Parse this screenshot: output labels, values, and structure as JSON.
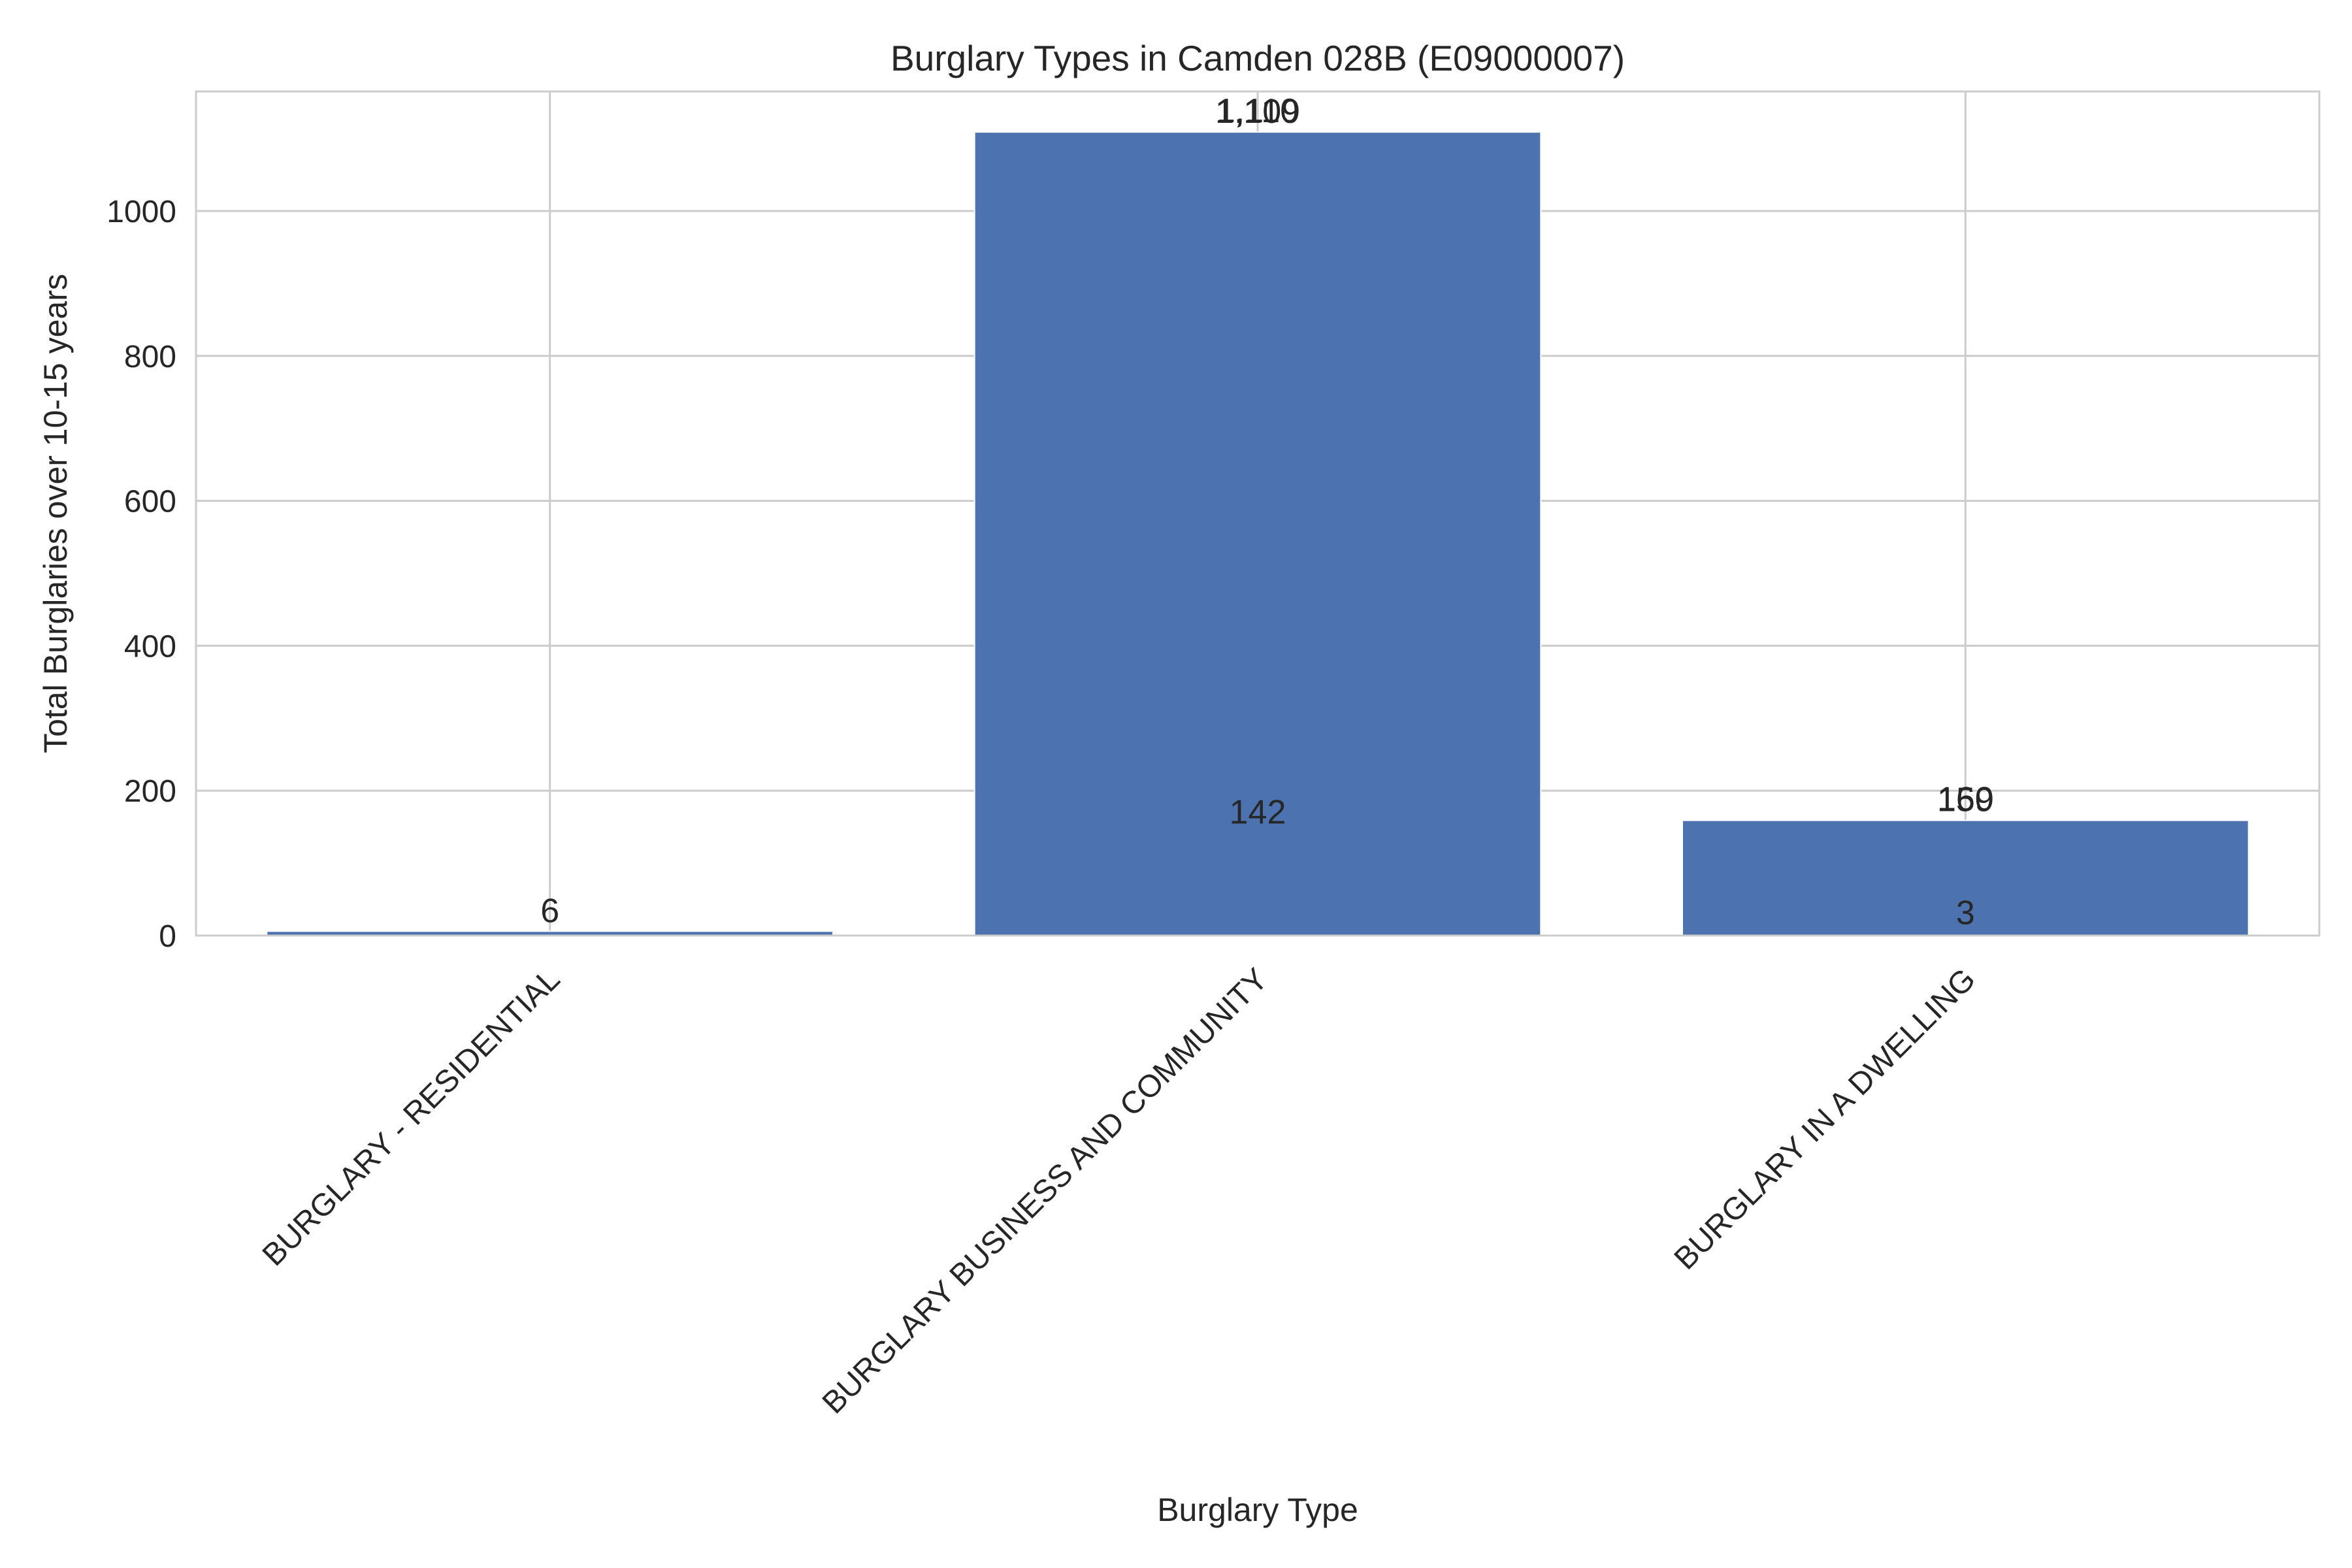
{
  "chart_data": {
    "type": "bar",
    "title": "Burglary Types in Camden 028B (E09000007)",
    "xlabel": "Burglary Type",
    "ylabel": "Total Burglaries over 10-15 years",
    "categories": [
      "BURGLARY - RESIDENTIAL",
      "BURGLARY BUSINESS AND COMMUNITY",
      "BURGLARY IN A DWELLING"
    ],
    "values": [
      6,
      1109,
      159
    ],
    "data_labels": [
      {
        "category": 0,
        "value": 6,
        "text": "6"
      },
      {
        "category": 1,
        "value": 1109,
        "text": "1,109"
      },
      {
        "category": 1,
        "value": 1110,
        "text": "1,110"
      },
      {
        "category": 1,
        "value": 142,
        "text": "142"
      },
      {
        "category": 2,
        "value": 159,
        "text": "159"
      },
      {
        "category": 2,
        "value": 160,
        "text": "160"
      },
      {
        "category": 2,
        "value": 3,
        "text": "3"
      }
    ],
    "yticks": [
      0,
      200,
      400,
      600,
      800,
      1000
    ],
    "ytick_labels": [
      "0",
      "200",
      "400",
      "600",
      "800",
      "1000"
    ],
    "ylim": [
      0,
      1165
    ],
    "grid": true,
    "bar_color": "#4c72b0"
  }
}
